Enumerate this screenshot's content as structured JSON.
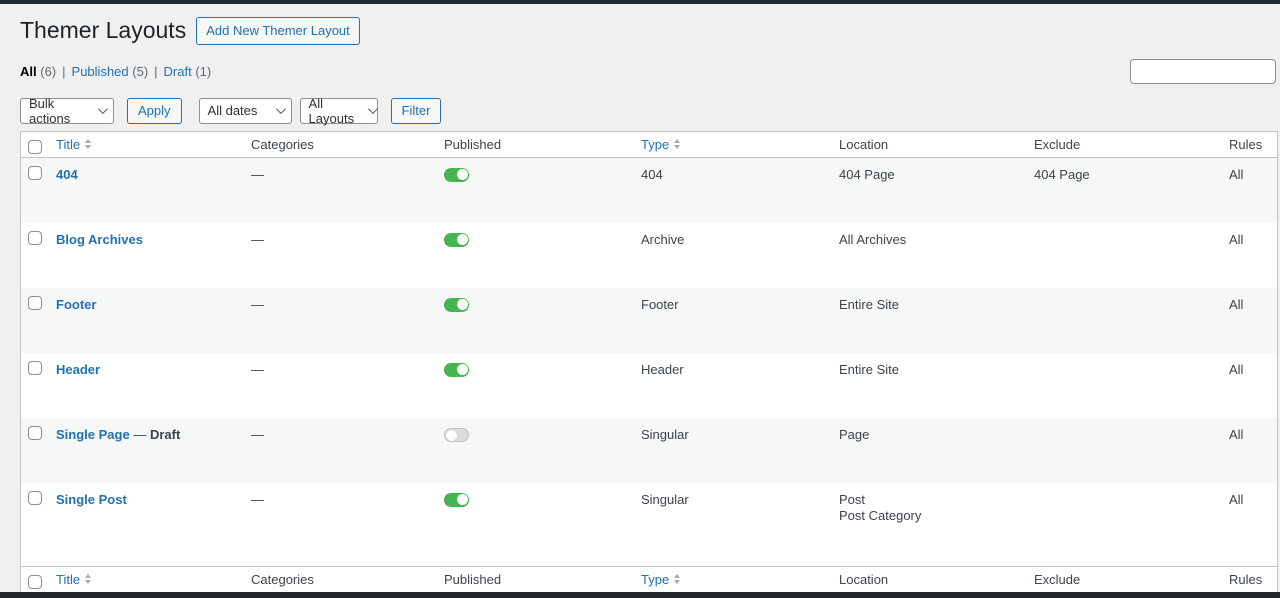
{
  "header": {
    "title": "Themer Layouts",
    "add_new_label": "Add New Themer Layout"
  },
  "views": {
    "separator": "|",
    "items": [
      {
        "label": "All",
        "count": "(6)",
        "current": true
      },
      {
        "label": "Published",
        "count": "(5)",
        "current": false
      },
      {
        "label": "Draft",
        "count": "(1)",
        "current": false
      }
    ]
  },
  "toolbar": {
    "bulk_actions": "Bulk actions",
    "apply_label": "Apply",
    "dates": "All dates",
    "layouts": "All Layouts",
    "filter_label": "Filter"
  },
  "search": {
    "value": "",
    "placeholder": ""
  },
  "table": {
    "headers": {
      "title": "Title",
      "categories": "Categories",
      "published": "Published",
      "type": "Type",
      "location": "Location",
      "exclude": "Exclude",
      "rules": "Rules"
    },
    "rows": [
      {
        "title": "404",
        "state": "",
        "categories": "—",
        "published": "on",
        "type": "404",
        "location": "404 Page",
        "location2": "",
        "exclude": "404 Page",
        "rules": "All"
      },
      {
        "title": "Blog Archives",
        "state": "",
        "categories": "—",
        "published": "on",
        "type": "Archive",
        "location": "All Archives",
        "location2": "",
        "exclude": "",
        "rules": "All"
      },
      {
        "title": "Footer",
        "state": "",
        "categories": "—",
        "published": "on",
        "type": "Footer",
        "location": "Entire Site",
        "location2": "",
        "exclude": "",
        "rules": "All"
      },
      {
        "title": "Header",
        "state": "",
        "categories": "—",
        "published": "on",
        "type": "Header",
        "location": "Entire Site",
        "location2": "",
        "exclude": "",
        "rules": "All"
      },
      {
        "title": "Single Page",
        "state": "Draft",
        "state_separator": "—",
        "categories": "—",
        "published": "off",
        "type": "Singular",
        "location": "Page",
        "location2": "",
        "exclude": "",
        "rules": "All"
      },
      {
        "title": "Single Post",
        "state": "",
        "categories": "—",
        "published": "on",
        "type": "Singular",
        "location": "Post",
        "location2": "Post Category",
        "exclude": "",
        "rules": "All"
      }
    ]
  },
  "colors": {
    "accent_blue": "#2271b1",
    "toggle_on_green": "#46b450",
    "page_background": "#f0f0f1",
    "stripe_background": "#f6f7f7"
  }
}
